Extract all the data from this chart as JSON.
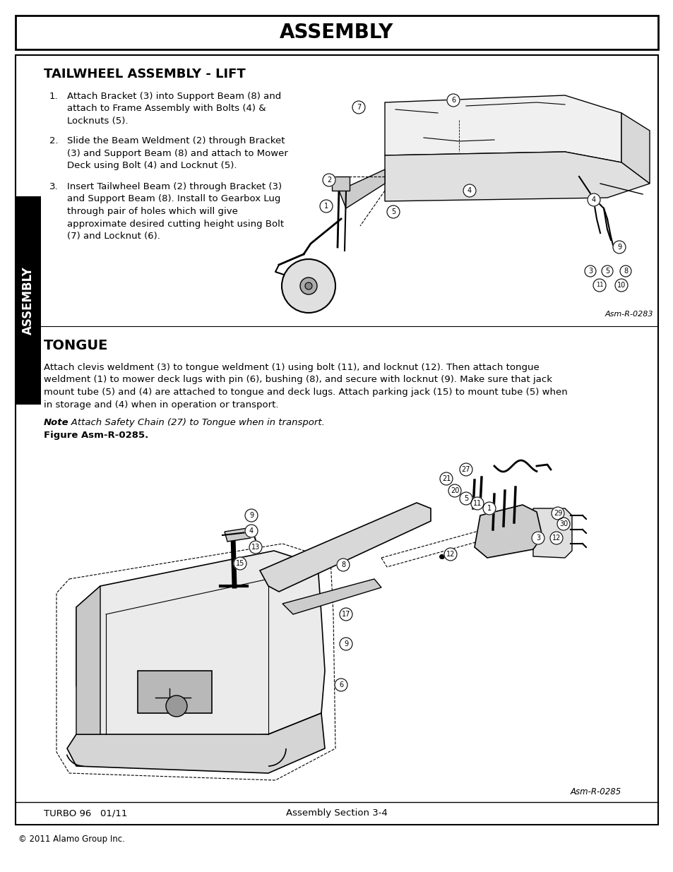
{
  "page_bg": "#ffffff",
  "header_title": "ASSEMBLY",
  "section1_title": "TAILWHEEL ASSEMBLY - LIFT",
  "section1_item1": "Attach Bracket (3) into Support Beam (8) and\n    attach to Frame Assembly with Bolts (4) &\n    Locknuts (5).",
  "section1_item2": "Slide the Beam Weldment (2) through Bracket\n    (3) and Support Beam (8) and attach to Mower\n    Deck using Bolt (4) and Locknut (5).",
  "section1_item3": "Insert Tailwheel Beam (2) through Bracket (3)\n    and Support Beam (8). Install to Gearbox Lug\n    through pair of holes which will give\n    approximate desired cutting height using Bolt\n    (7) and Locknut (6).",
  "fig1_label": "Asm-R-0283",
  "section2_title": "TONGUE",
  "section2_para": "Attach clevis weldment (3) to tongue weldment (1) using bolt (11), and locknut (12). Then attach tongue\nweldment (1) to mower deck lugs with pin (6), bushing (8), and secure with locknut (9). Make sure that jack\nmount tube (5) and (4) are attached to tongue and deck lugs. Attach parking jack (15) to mount tube (5) when\nin storage and (4) when in operation or transport.",
  "section2_note_bold": "Note",
  "section2_note_italic": ": Attach Safety Chain (27) to Tongue when in transport.",
  "section2_figref": "Figure Asm-R-0285.",
  "fig2_label": "Asm-R-0285",
  "footer_left": "TURBO 96   01/11",
  "footer_center": "Assembly Section 3-4",
  "footer_copyright": "© 2011 Alamo Group Inc.",
  "sidebar_text": "ASSEMBLY",
  "sidebar_bg": "#000000",
  "sidebar_text_color": "#ffffff"
}
